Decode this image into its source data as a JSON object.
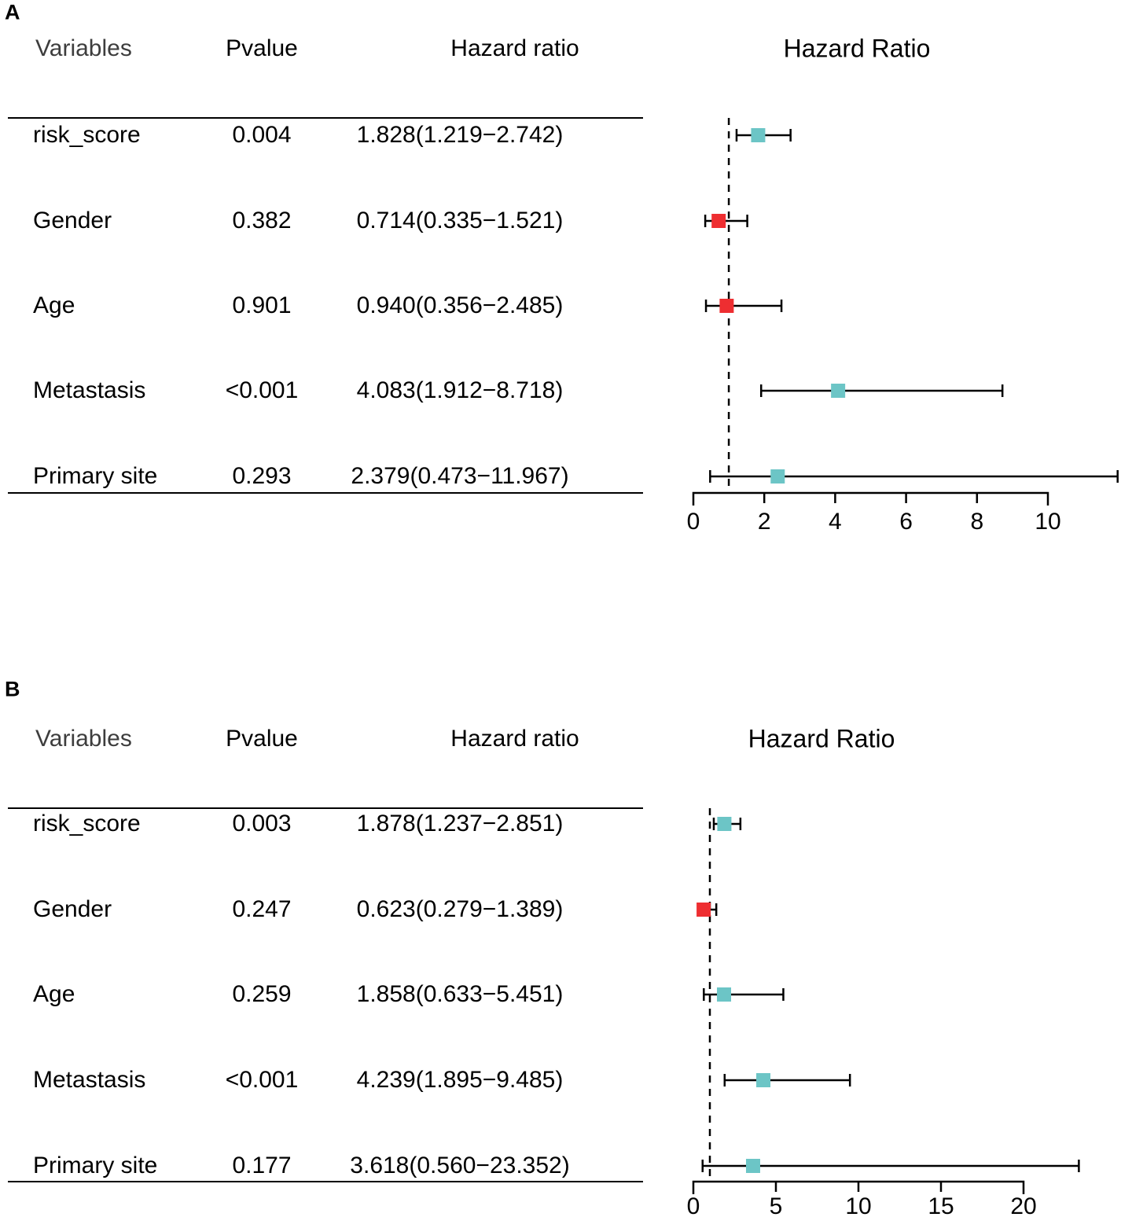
{
  "colors": {
    "teal": "#6CC5C6",
    "red": "#EE2E31",
    "axis": "#000000",
    "header_text": "#3d3d3d"
  },
  "chart_data": [
    {
      "type": "forest",
      "panel": "A",
      "title": "Hazard Ratio",
      "columns": {
        "variables": "Variables",
        "pvalue": "Pvalue",
        "hazard_ratio": "Hazard ratio"
      },
      "rows": [
        {
          "variable": "risk_score",
          "pvalue": "0.004",
          "hr_text": "1.828(1.219−2.742)",
          "hr": 1.828,
          "ci_low": 1.219,
          "ci_high": 2.742,
          "marker": "teal"
        },
        {
          "variable": "Gender",
          "pvalue": "0.382",
          "hr_text": "0.714(0.335−1.521)",
          "hr": 0.714,
          "ci_low": 0.335,
          "ci_high": 1.521,
          "marker": "red"
        },
        {
          "variable": "Age",
          "pvalue": "0.901",
          "hr_text": "0.940(0.356−2.485)",
          "hr": 0.94,
          "ci_low": 0.356,
          "ci_high": 2.485,
          "marker": "red"
        },
        {
          "variable": "Metastasis",
          "pvalue": "<0.001",
          "hr_text": "4.083(1.912−8.718)",
          "hr": 4.083,
          "ci_low": 1.912,
          "ci_high": 8.718,
          "marker": "teal"
        },
        {
          "variable": "Primary site",
          "pvalue": "0.293",
          "hr_text": "2.379(0.473−11.967)",
          "hr": 2.379,
          "ci_low": 0.473,
          "ci_high": 11.967,
          "marker": "teal"
        }
      ],
      "axis": {
        "ticks": [
          0,
          2,
          4,
          6,
          8,
          10
        ],
        "min": 0,
        "max": 12.1,
        "reference_line": 1,
        "scale": "linear"
      }
    },
    {
      "type": "forest",
      "panel": "B",
      "title": "Hazard Ratio",
      "columns": {
        "variables": "Variables",
        "pvalue": "Pvalue",
        "hazard_ratio": "Hazard ratio"
      },
      "rows": [
        {
          "variable": "risk_score",
          "pvalue": "0.003",
          "hr_text": "1.878(1.237−2.851)",
          "hr": 1.878,
          "ci_low": 1.237,
          "ci_high": 2.851,
          "marker": "teal"
        },
        {
          "variable": "Gender",
          "pvalue": "0.247",
          "hr_text": "0.623(0.279−1.389)",
          "hr": 0.623,
          "ci_low": 0.279,
          "ci_high": 1.389,
          "marker": "red"
        },
        {
          "variable": "Age",
          "pvalue": "0.259",
          "hr_text": "1.858(0.633−5.451)",
          "hr": 1.858,
          "ci_low": 0.633,
          "ci_high": 5.451,
          "marker": "teal"
        },
        {
          "variable": "Metastasis",
          "pvalue": "<0.001",
          "hr_text": "4.239(1.895−9.485)",
          "hr": 4.239,
          "ci_low": 1.895,
          "ci_high": 9.485,
          "marker": "teal"
        },
        {
          "variable": "Primary site",
          "pvalue": "0.177",
          "hr_text": "3.618(0.560−23.352)",
          "hr": 3.618,
          "ci_low": 0.56,
          "ci_high": 23.352,
          "marker": "teal"
        }
      ],
      "axis": {
        "ticks": [
          0,
          5,
          10,
          15,
          20
        ],
        "min": 0,
        "max": 25.9,
        "reference_line": 1,
        "scale": "linear"
      }
    }
  ]
}
